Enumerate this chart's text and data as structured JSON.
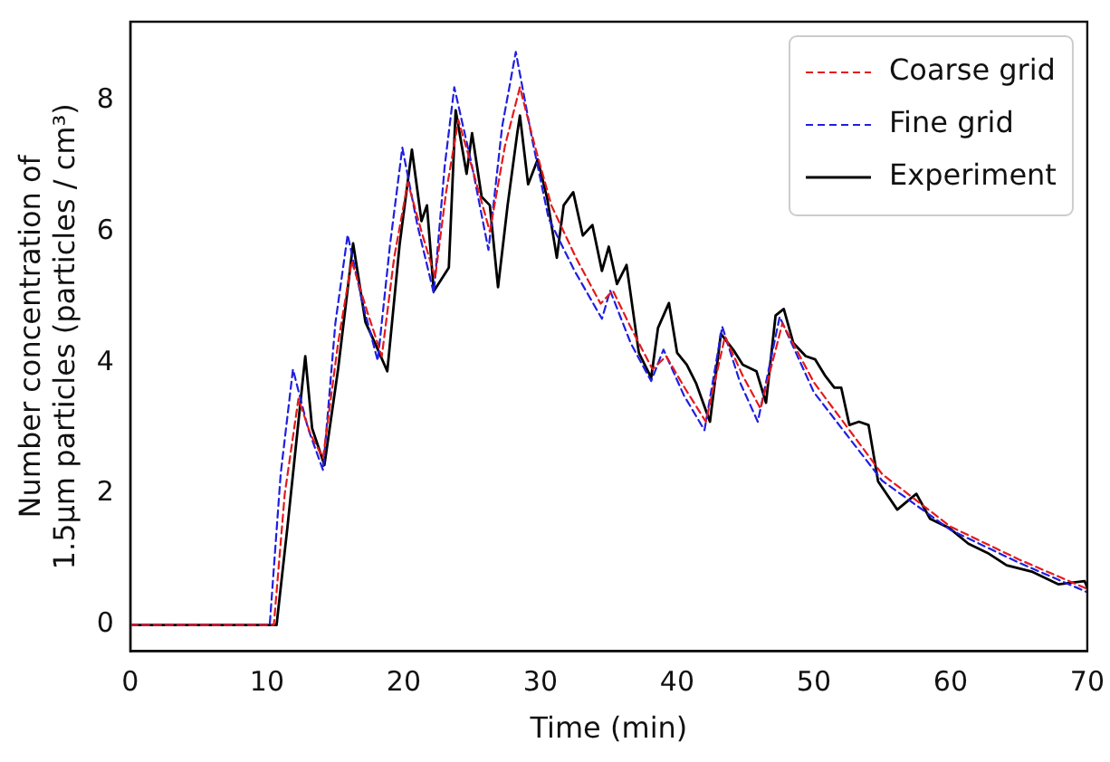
{
  "chart_data": {
    "type": "line",
    "xlabel": "Time (min)",
    "ylabel": "Number concentration of\n1.5μm particles (particles / cm³)",
    "xlim": [
      0,
      70
    ],
    "ylim": [
      -0.4,
      9.2
    ],
    "xticks": [
      0,
      10,
      20,
      30,
      40,
      50,
      60,
      70
    ],
    "yticks": [
      0,
      2,
      4,
      6,
      8
    ],
    "grid": false,
    "legend": "top right",
    "marker": "none",
    "series": [
      {
        "name": "Coarse grid",
        "color": "#e41a1c",
        "line_style": "dashed",
        "x": [
          0,
          5,
          10.5,
          11.3,
          12.3,
          13.2,
          14.1,
          15.2,
          16.2,
          17.3,
          18.4,
          19.3,
          20.3,
          21.3,
          22.3,
          23.1,
          24.0,
          25.1,
          26.3,
          27.4,
          28.5,
          29.6,
          30.8,
          32.6,
          34.4,
          35.3,
          36.7,
          38.2,
          39.2,
          40.6,
          42.1,
          43.5,
          44.8,
          46.1,
          47.7,
          50,
          55,
          60,
          65,
          70
        ],
        "values": [
          0,
          0,
          0,
          2.0,
          3.45,
          2.9,
          2.55,
          4.3,
          5.55,
          4.8,
          4.1,
          5.6,
          6.75,
          6.0,
          5.3,
          6.6,
          7.7,
          6.9,
          6.0,
          7.3,
          8.2,
          7.3,
          6.4,
          5.6,
          4.9,
          5.1,
          4.5,
          3.9,
          4.1,
          3.6,
          3.1,
          4.4,
          3.8,
          3.3,
          4.6,
          3.7,
          2.3,
          1.5,
          1.0,
          0.55
        ]
      },
      {
        "name": "Fine grid",
        "color": "#1f1fe0",
        "line_style": "dashed",
        "x": [
          0,
          5,
          10.2,
          11.0,
          11.9,
          13.0,
          14.1,
          15.0,
          15.9,
          17.0,
          18.1,
          19.0,
          19.9,
          21.0,
          22.2,
          23.0,
          23.7,
          25.0,
          26.2,
          27.2,
          28.2,
          29.4,
          30.6,
          32.5,
          34.5,
          35.1,
          36.6,
          38.1,
          39.0,
          40.5,
          42.0,
          43.3,
          44.6,
          45.9,
          47.5,
          50,
          55,
          60,
          65,
          70
        ],
        "values": [
          0,
          0,
          0,
          2.3,
          3.9,
          3.0,
          2.36,
          4.6,
          5.95,
          4.9,
          4.03,
          5.8,
          7.28,
          6.1,
          5.06,
          7.0,
          8.2,
          7.0,
          5.72,
          7.6,
          8.74,
          7.4,
          6.2,
          5.4,
          4.67,
          5.1,
          4.3,
          3.72,
          4.2,
          3.5,
          2.97,
          4.55,
          3.7,
          3.1,
          4.7,
          3.55,
          2.2,
          1.45,
          0.95,
          0.5
        ]
      },
      {
        "name": "Experiment",
        "color": "#000000",
        "line_style": "solid",
        "x": [
          0,
          5,
          10.7,
          11.5,
          12.4,
          12.8,
          13.3,
          14.2,
          15.2,
          16.3,
          17.2,
          17.9,
          18.8,
          19.7,
          20.6,
          21.3,
          21.7,
          22.2,
          23.3,
          23.8,
          24.6,
          25.0,
          25.7,
          26.3,
          26.9,
          27.6,
          28.3,
          28.5,
          29.1,
          29.8,
          30.5,
          31.2,
          31.7,
          32.4,
          33.1,
          33.8,
          34.5,
          35.0,
          35.6,
          36.3,
          37.2,
          38.1,
          38.6,
          39.4,
          40.0,
          40.7,
          41.4,
          42.4,
          43.2,
          44.1,
          44.8,
          45.8,
          46.5,
          47.2,
          47.8,
          48.5,
          49.4,
          50.1,
          50.8,
          51.5,
          52.0,
          52.6,
          53.3,
          54.0,
          54.7,
          56.1,
          57.5,
          58.5,
          59.9,
          61.3,
          62.7,
          64.1,
          66.0,
          67.9,
          69.8,
          70
        ],
        "values": [
          0,
          0,
          0,
          1.5,
          3.3,
          4.1,
          3.0,
          2.44,
          3.9,
          5.82,
          4.62,
          4.3,
          3.87,
          5.8,
          7.25,
          6.16,
          6.4,
          5.09,
          5.45,
          7.85,
          6.88,
          7.5,
          6.53,
          6.4,
          5.15,
          6.4,
          7.49,
          7.77,
          6.72,
          7.1,
          6.5,
          5.6,
          6.4,
          6.6,
          5.94,
          6.1,
          5.4,
          5.77,
          5.2,
          5.49,
          4.15,
          3.77,
          4.53,
          4.91,
          4.15,
          3.97,
          3.68,
          3.1,
          4.44,
          4.2,
          3.97,
          3.87,
          3.39,
          4.72,
          4.82,
          4.3,
          4.1,
          4.05,
          3.81,
          3.62,
          3.62,
          3.05,
          3.1,
          3.05,
          2.19,
          1.76,
          2.0,
          1.62,
          1.48,
          1.24,
          1.1,
          0.91,
          0.81,
          0.62,
          0.67,
          0.57
        ]
      }
    ]
  }
}
